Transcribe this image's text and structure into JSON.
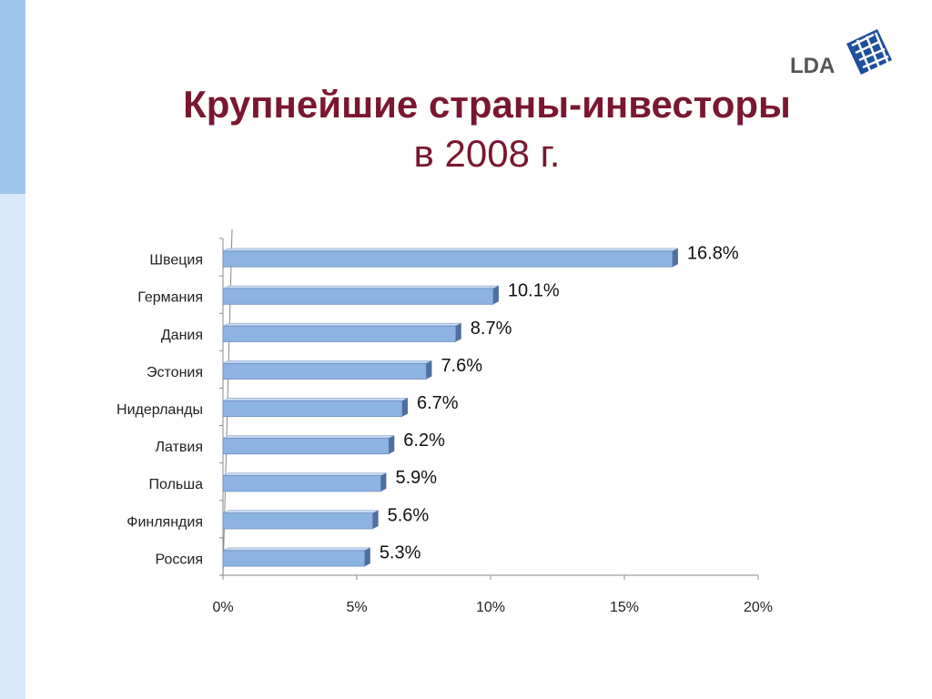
{
  "title": {
    "line1": "Крупнейшие страны-инвесторы",
    "line2": "в 2008 г."
  },
  "logo": {
    "text": "LDA",
    "color": "#1e4f9c",
    "text_color": "#555555"
  },
  "colors": {
    "title": "#7a1730",
    "bar_front": "#8db3e2",
    "bar_top": "#c6d9f1",
    "bar_end": "#4f6f9f",
    "strip_dark": "#9fc5ec",
    "strip_light": "#d6e8f9"
  },
  "chart_data": {
    "type": "bar",
    "orientation": "horizontal",
    "categories": [
      "Швеция",
      "Германия",
      "Дания",
      "Эстония",
      "Нидерланды",
      "Латвия",
      "Польша",
      "Финляндия",
      "Россия"
    ],
    "values": [
      16.8,
      10.1,
      8.7,
      7.6,
      6.7,
      6.2,
      5.9,
      5.6,
      5.3
    ],
    "data_labels": [
      "16.8%",
      "10.1%",
      "8.7%",
      "7.6%",
      "6.7%",
      "6.2%",
      "5.9%",
      "5.6%",
      "5.3%"
    ],
    "xlim": [
      0,
      20
    ],
    "xticks": [
      0,
      5,
      10,
      15,
      20
    ],
    "xtick_labels": [
      "0%",
      "5%",
      "10%",
      "15%",
      "20%"
    ],
    "grid": false,
    "legend": "none"
  }
}
